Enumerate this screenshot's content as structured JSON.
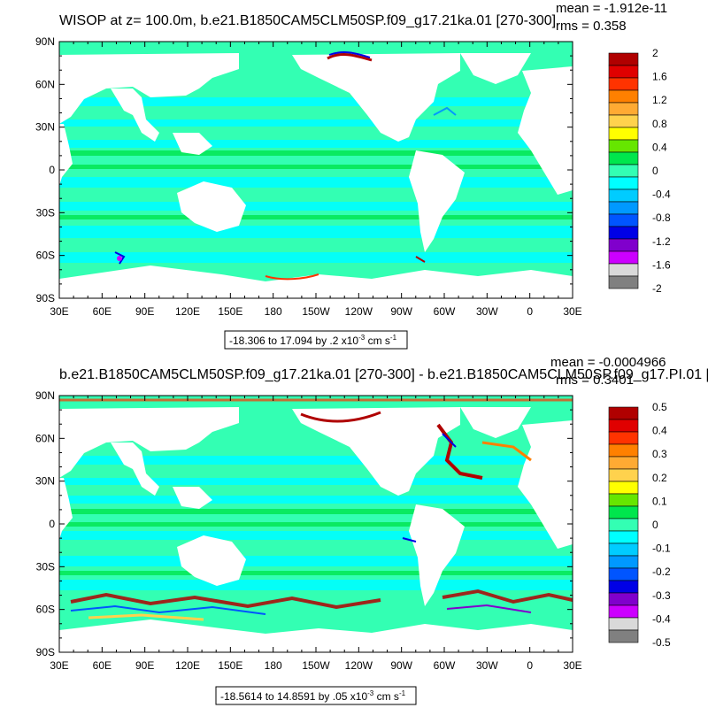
{
  "chart_data": [
    {
      "type": "heatmap",
      "title": "WISOP at z= 100.0m, b.e21.B1850CAM5CLM50SP.f09_g17.21ka.01 [270-300]",
      "mean_label": "mean = -1.912e-11",
      "rms_label": "rms = 0.358",
      "range_label": "-18.306 to 17.094 by .2 x10",
      "range_exp": "-3",
      "range_units": " cm s",
      "range_units_exp": "-1",
      "x_ticks": [
        "30E",
        "60E",
        "90E",
        "120E",
        "150E",
        "180",
        "150W",
        "120W",
        "90W",
        "60W",
        "30W",
        "0",
        "30E"
      ],
      "y_ticks": [
        "90N",
        "60N",
        "30N",
        "0",
        "30S",
        "60S",
        "90S"
      ],
      "colorbar": {
        "labels": [
          "2",
          "1.6",
          "1.2",
          "0.8",
          "0.4",
          "0",
          "-0.4",
          "-0.8",
          "-1.2",
          "-1.6",
          "-2"
        ],
        "colors": [
          "#b00000",
          "#e00000",
          "#ff3300",
          "#ff8000",
          "#ffaa33",
          "#ffd24d",
          "#ffff00",
          "#66e600",
          "#00e64d",
          "#33ffb3",
          "#00ffff",
          "#00ccff",
          "#0099ff",
          "#0055ff",
          "#0000e6",
          "#8000cc",
          "#cc00ff",
          "#d9d9d9",
          "#808080"
        ]
      }
    },
    {
      "type": "heatmap",
      "title": "b.e21.B1850CAM5CLM50SP.f09_g17.21ka.01 [270-300] - b.e21.B1850CAM5CLM50SP.f09_g17.PI.01 [",
      "mean_label": "mean = -0.0004966",
      "rms_label": "rms = 0.3401",
      "range_label": "-18.5614 to 14.8591 by .05 x10",
      "range_exp": "-3",
      "range_units": " cm s",
      "range_units_exp": "-1",
      "x_ticks": [
        "30E",
        "60E",
        "90E",
        "120E",
        "150E",
        "180",
        "150W",
        "120W",
        "90W",
        "60W",
        "30W",
        "0",
        "30E"
      ],
      "y_ticks": [
        "90N",
        "60N",
        "30N",
        "0",
        "30S",
        "60S",
        "90S"
      ],
      "colorbar": {
        "labels": [
          "0.5",
          "0.4",
          "0.3",
          "0.2",
          "0.1",
          "0",
          "-0.1",
          "-0.2",
          "-0.3",
          "-0.4",
          "-0.5"
        ],
        "colors": [
          "#b00000",
          "#e00000",
          "#ff3300",
          "#ff8000",
          "#ffaa33",
          "#ffd24d",
          "#ffff00",
          "#66e600",
          "#00e64d",
          "#33ffb3",
          "#00ffff",
          "#00ccff",
          "#0099ff",
          "#0055ff",
          "#0000e6",
          "#8000cc",
          "#cc00ff",
          "#d9d9d9",
          "#808080"
        ]
      }
    }
  ]
}
